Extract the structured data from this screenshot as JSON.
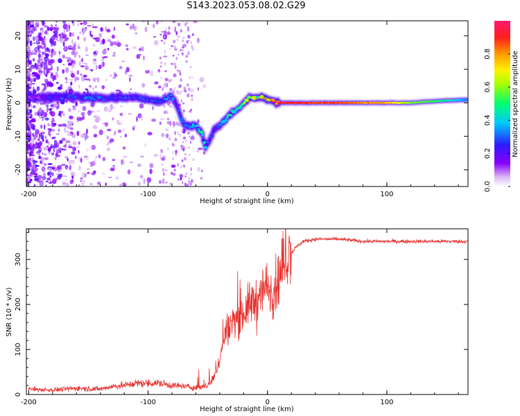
{
  "title": "S143.2023.053.08.02.G29",
  "chart_data": [
    {
      "type": "heatmap",
      "xlabel": "Height of straight line (km)",
      "ylabel": "Frequency (Hz)",
      "xlim": [
        -202,
        168
      ],
      "ylim": [
        -25,
        24.5
      ],
      "xticks": [
        -200,
        -100,
        0,
        100
      ],
      "yticks": [
        -20,
        -10,
        0,
        10,
        20
      ],
      "colorbar": {
        "label": "Normalized spectral amplitude",
        "ticks": [
          0.0,
          0.2,
          0.4,
          0.6,
          0.8
        ],
        "tick_labels": [
          "0.0",
          "0.2",
          "0.4",
          "0.6",
          "0.8"
        ],
        "range": [
          0,
          1
        ]
      },
      "ridge": {
        "x": [
          -200,
          -170,
          -140,
          -110,
          -90,
          -80,
          -75,
          -70,
          -65,
          -60,
          -55,
          -52,
          -48,
          -45,
          -40,
          -35,
          -30,
          -25,
          -20,
          -15,
          -10,
          -5,
          0,
          5,
          10,
          20,
          40,
          60,
          80,
          100,
          120,
          140,
          160,
          168
        ],
        "frequency_hz": [
          1.5,
          1.8,
          1.5,
          1.5,
          0.5,
          2.0,
          -1.5,
          -6.5,
          -7.0,
          -6.5,
          -9.0,
          -13.0,
          -11.0,
          -8.0,
          -7.0,
          -5.0,
          -3.0,
          -2.0,
          0.0,
          1.5,
          1.5,
          2.0,
          1.0,
          0.5,
          0.0,
          0.0,
          0.0,
          0.0,
          0.0,
          0.0,
          0.0,
          0.5,
          0.8,
          1.0
        ],
        "amplitude": [
          0.15,
          0.3,
          0.3,
          0.3,
          0.3,
          0.35,
          0.25,
          0.3,
          0.35,
          0.4,
          0.45,
          0.4,
          0.3,
          0.25,
          0.35,
          0.45,
          0.5,
          0.5,
          0.6,
          0.65,
          0.7,
          0.75,
          0.8,
          0.9,
          0.95,
          0.95,
          0.9,
          0.9,
          0.85,
          0.8,
          0.6,
          0.55,
          0.4,
          0.35
        ]
      }
    },
    {
      "type": "line",
      "xlabel": "Height of straight line (km)",
      "ylabel": "SNR (10 * v/v)",
      "xlim": [
        -202,
        168
      ],
      "ylim": [
        0,
        368
      ],
      "xticks": [
        -200,
        -100,
        0,
        100
      ],
      "yticks": [
        0,
        100,
        200,
        300
      ],
      "series": [
        {
          "color": "#e8302c",
          "x": [
            -200,
            -180,
            -160,
            -140,
            -130,
            -120,
            -110,
            -100,
            -90,
            -80,
            -70,
            -60,
            -50,
            -45,
            -40,
            -35,
            -30,
            -25,
            -20,
            -15,
            -10,
            -5,
            0,
            5,
            10,
            15,
            20,
            25,
            30,
            40,
            60,
            80,
            100,
            120,
            140,
            160,
            168
          ],
          "y": [
            12,
            10,
            14,
            12,
            18,
            20,
            25,
            25,
            25,
            20,
            18,
            15,
            20,
            35,
            80,
            140,
            160,
            170,
            180,
            200,
            210,
            230,
            240,
            230,
            260,
            300,
            315,
            330,
            340,
            345,
            345,
            340,
            340,
            340,
            340,
            340,
            340
          ]
        }
      ]
    }
  ]
}
